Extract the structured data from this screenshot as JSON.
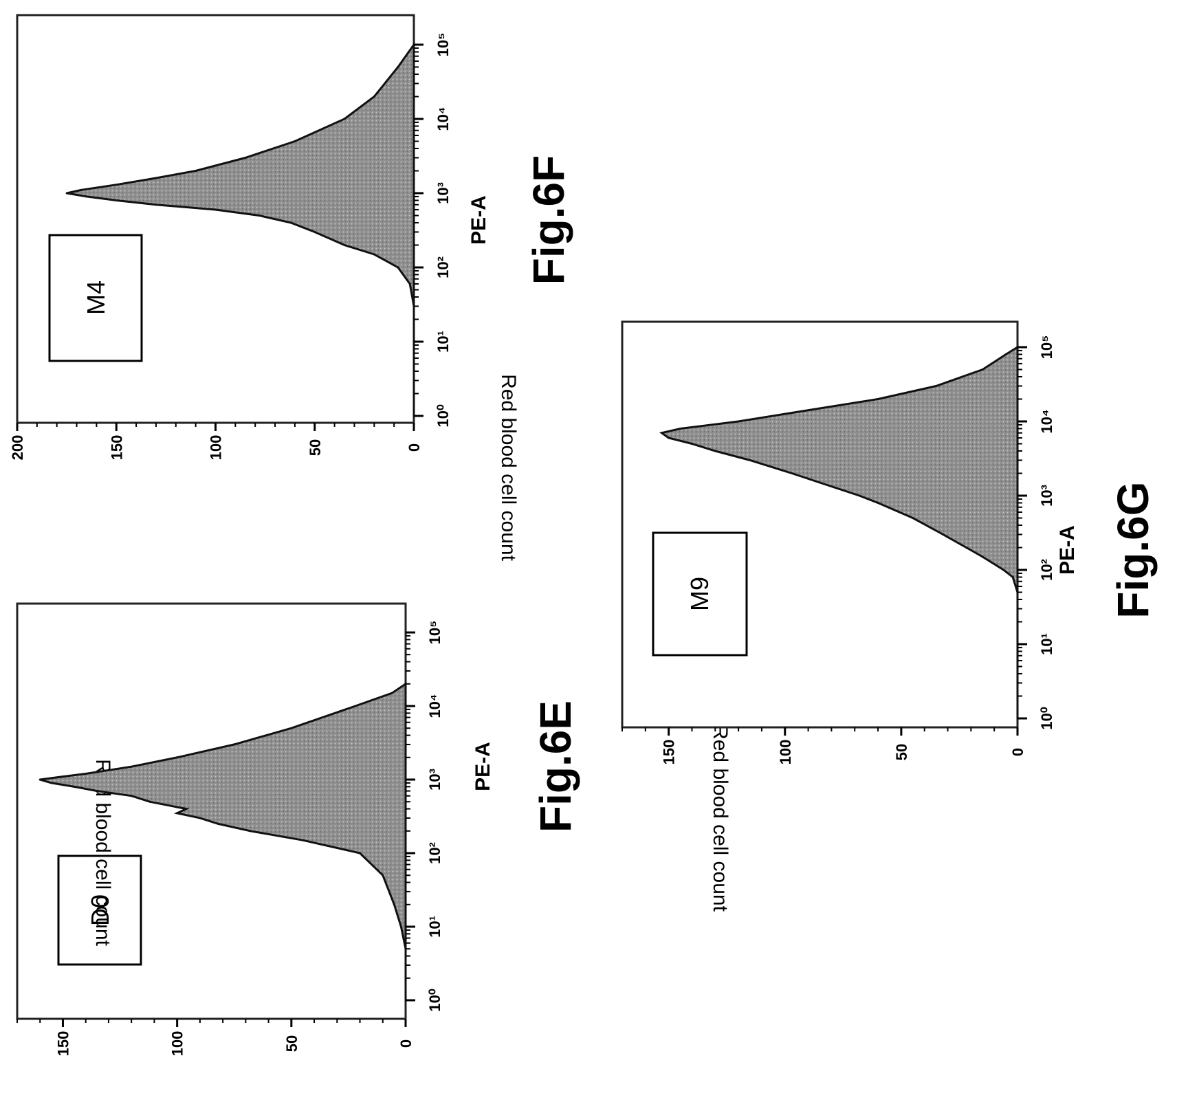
{
  "chart_data": [
    {
      "type": "area",
      "figure_label": "Fig.6E",
      "sample_label": "D0",
      "xlabel": "PE-A",
      "ylabel": "Red blood cell count",
      "x_scale": "log",
      "xlim": [
        1,
        200000
      ],
      "ylim": [
        0,
        170
      ],
      "xticks": [
        "10⁰",
        "10¹",
        "10²",
        "10³",
        "10⁴",
        "10⁵"
      ],
      "yticks": [
        "0",
        "50",
        "100",
        "150"
      ],
      "x": [
        1,
        5,
        10,
        20,
        50,
        100,
        150,
        200,
        250,
        300,
        350,
        400,
        500,
        600,
        700,
        800,
        900,
        1000,
        1100,
        1200,
        1500,
        2000,
        3000,
        5000,
        10000,
        15000,
        20000
      ],
      "values": [
        0,
        0,
        2,
        5,
        10,
        20,
        45,
        68,
        82,
        90,
        100,
        96,
        112,
        120,
        135,
        145,
        155,
        160,
        150,
        140,
        120,
        100,
        75,
        50,
        22,
        6,
        0
      ]
    },
    {
      "type": "area",
      "figure_label": "Fig.6F",
      "sample_label": "M4",
      "xlabel": "PE-A",
      "ylabel": "Red blood cell count",
      "x_scale": "log",
      "xlim": [
        1,
        200000
      ],
      "ylim": [
        0,
        200
      ],
      "xticks": [
        "10⁰",
        "10¹",
        "10²",
        "10³",
        "10⁴",
        "10⁵"
      ],
      "yticks": [
        "0",
        "50",
        "100",
        "150",
        "200"
      ],
      "x": [
        1,
        10,
        30,
        60,
        100,
        150,
        200,
        300,
        400,
        500,
        600,
        700,
        800,
        900,
        1000,
        1100,
        1300,
        1600,
        2000,
        3000,
        5000,
        10000,
        20000,
        50000,
        100000
      ],
      "values": [
        0,
        0,
        0,
        2,
        8,
        20,
        35,
        50,
        62,
        78,
        100,
        130,
        150,
        165,
        175,
        168,
        150,
        130,
        110,
        85,
        60,
        35,
        20,
        8,
        0
      ]
    },
    {
      "type": "area",
      "figure_label": "Fig.6G",
      "sample_label": "M9",
      "xlabel": "PE-A",
      "ylabel": "Red blood cell count",
      "x_scale": "log",
      "xlim": [
        1,
        200000
      ],
      "ylim": [
        0,
        170
      ],
      "xticks": [
        "10⁰",
        "10¹",
        "10²",
        "10³",
        "10⁴",
        "10⁵"
      ],
      "yticks": [
        "0",
        "50",
        "100",
        "150"
      ],
      "x": [
        1,
        50,
        80,
        100,
        150,
        200,
        300,
        500,
        800,
        1000,
        1500,
        2000,
        3000,
        4000,
        5000,
        6000,
        7000,
        8000,
        10000,
        15000,
        20000,
        30000,
        50000,
        80000,
        100000
      ],
      "values": [
        0,
        0,
        2,
        6,
        15,
        22,
        32,
        45,
        60,
        68,
        85,
        97,
        115,
        130,
        140,
        150,
        153,
        145,
        120,
        85,
        60,
        35,
        15,
        5,
        0
      ]
    }
  ]
}
